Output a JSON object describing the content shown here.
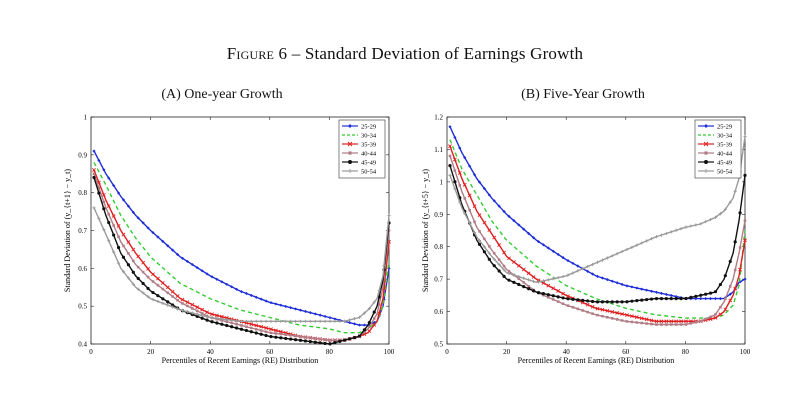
{
  "figure": {
    "title_prefix": "Figure 6",
    "title_rest": "– Standard Deviation of Earnings Growth"
  },
  "colors": {
    "25-29": "#1f2fd6",
    "30-34": "#33cc33",
    "35-39": "#e02020",
    "40-44": "#b07c86",
    "45-49": "#111111",
    "50-54": "#9a9a9a"
  },
  "chart_data": [
    {
      "type": "line",
      "panel_label": "(A) One-year Growth",
      "xlabel": "Percentiles of Recent Earnings (RE) Distribution",
      "ylabel": "Standard Deviation of (y_{t+1} − y_t)",
      "xlim": [
        0,
        100
      ],
      "ylim": [
        0.4,
        1.0
      ],
      "xticks": [
        "0",
        "20",
        "40",
        "60",
        "80",
        "100"
      ],
      "yticks": [
        "0.4",
        "0.5",
        "0.6",
        "0.7",
        "0.8",
        "0.9",
        "1"
      ],
      "legend_position": "top-right",
      "x": [
        1,
        5,
        10,
        15,
        20,
        30,
        40,
        50,
        60,
        70,
        80,
        85,
        90,
        93,
        96,
        98,
        100
      ],
      "series": [
        {
          "name": "25-29",
          "marker": "diamond",
          "dash": "solid",
          "values": [
            0.91,
            0.85,
            0.79,
            0.74,
            0.7,
            0.63,
            0.58,
            0.54,
            0.51,
            0.49,
            0.47,
            0.46,
            0.45,
            0.45,
            0.46,
            0.5,
            0.6
          ]
        },
        {
          "name": "30-34",
          "marker": "none",
          "dash": "dashed",
          "values": [
            0.88,
            0.82,
            0.74,
            0.68,
            0.63,
            0.56,
            0.52,
            0.49,
            0.47,
            0.45,
            0.44,
            0.43,
            0.43,
            0.44,
            0.46,
            0.5,
            0.62
          ]
        },
        {
          "name": "35-39",
          "marker": "cross",
          "dash": "solid",
          "values": [
            0.86,
            0.78,
            0.7,
            0.64,
            0.59,
            0.52,
            0.48,
            0.46,
            0.44,
            0.42,
            0.41,
            0.41,
            0.42,
            0.43,
            0.46,
            0.52,
            0.67
          ]
        },
        {
          "name": "40-44",
          "marker": "square",
          "dash": "solid",
          "values": [
            0.85,
            0.76,
            0.67,
            0.61,
            0.57,
            0.51,
            0.47,
            0.45,
            0.43,
            0.42,
            0.41,
            0.41,
            0.42,
            0.44,
            0.48,
            0.55,
            0.7
          ]
        },
        {
          "name": "45-49",
          "marker": "circle",
          "dash": "solid",
          "values": [
            0.84,
            0.74,
            0.64,
            0.58,
            0.54,
            0.49,
            0.46,
            0.44,
            0.42,
            0.41,
            0.4,
            0.41,
            0.42,
            0.45,
            0.5,
            0.57,
            0.72
          ]
        },
        {
          "name": "50-54",
          "marker": "plus",
          "dash": "solid",
          "values": [
            0.76,
            0.69,
            0.6,
            0.55,
            0.52,
            0.49,
            0.47,
            0.46,
            0.46,
            0.46,
            0.46,
            0.46,
            0.47,
            0.49,
            0.52,
            0.58,
            0.74
          ]
        }
      ]
    },
    {
      "type": "line",
      "panel_label": "(B) Five-Year Growth",
      "xlabel": "Percentiles of Recent Earnings (RE) Distribution",
      "ylabel": "Standard Deviation of (y_{t+5} − y_t)",
      "xlim": [
        0,
        100
      ],
      "ylim": [
        0.5,
        1.2
      ],
      "xticks": [
        "0",
        "20",
        "40",
        "60",
        "80",
        "100"
      ],
      "yticks": [
        "0.5",
        "0.6",
        "0.7",
        "0.8",
        "0.9",
        "1",
        "1.1",
        "1.2"
      ],
      "legend_position": "top-right",
      "x": [
        1,
        5,
        10,
        15,
        20,
        30,
        40,
        50,
        60,
        70,
        80,
        85,
        90,
        93,
        96,
        98,
        100
      ],
      "series": [
        {
          "name": "25-29",
          "marker": "diamond",
          "dash": "solid",
          "values": [
            1.17,
            1.09,
            1.01,
            0.95,
            0.9,
            0.82,
            0.76,
            0.71,
            0.68,
            0.66,
            0.64,
            0.64,
            0.64,
            0.64,
            0.66,
            0.69,
            0.7
          ]
        },
        {
          "name": "30-34",
          "marker": "none",
          "dash": "dashed",
          "values": [
            1.13,
            1.04,
            0.96,
            0.88,
            0.82,
            0.74,
            0.68,
            0.64,
            0.61,
            0.59,
            0.58,
            0.58,
            0.58,
            0.59,
            0.62,
            0.68,
            0.85
          ]
        },
        {
          "name": "35-39",
          "marker": "cross",
          "dash": "solid",
          "values": [
            1.11,
            1.01,
            0.91,
            0.84,
            0.77,
            0.7,
            0.65,
            0.61,
            0.59,
            0.57,
            0.57,
            0.57,
            0.58,
            0.6,
            0.65,
            0.71,
            0.82
          ]
        },
        {
          "name": "40-44",
          "marker": "square",
          "dash": "solid",
          "values": [
            1.08,
            0.97,
            0.86,
            0.79,
            0.73,
            0.66,
            0.62,
            0.59,
            0.57,
            0.56,
            0.56,
            0.57,
            0.59,
            0.63,
            0.7,
            0.78,
            0.88
          ]
        },
        {
          "name": "45-49",
          "marker": "circle",
          "dash": "solid",
          "values": [
            1.05,
            0.93,
            0.82,
            0.75,
            0.7,
            0.66,
            0.64,
            0.63,
            0.63,
            0.64,
            0.64,
            0.65,
            0.66,
            0.7,
            0.78,
            0.88,
            1.02
          ]
        },
        {
          "name": "50-54",
          "marker": "plus",
          "dash": "solid",
          "values": [
            1.02,
            0.92,
            0.83,
            0.77,
            0.72,
            0.69,
            0.71,
            0.75,
            0.79,
            0.83,
            0.86,
            0.87,
            0.89,
            0.91,
            0.95,
            1.01,
            1.14
          ]
        }
      ]
    }
  ]
}
